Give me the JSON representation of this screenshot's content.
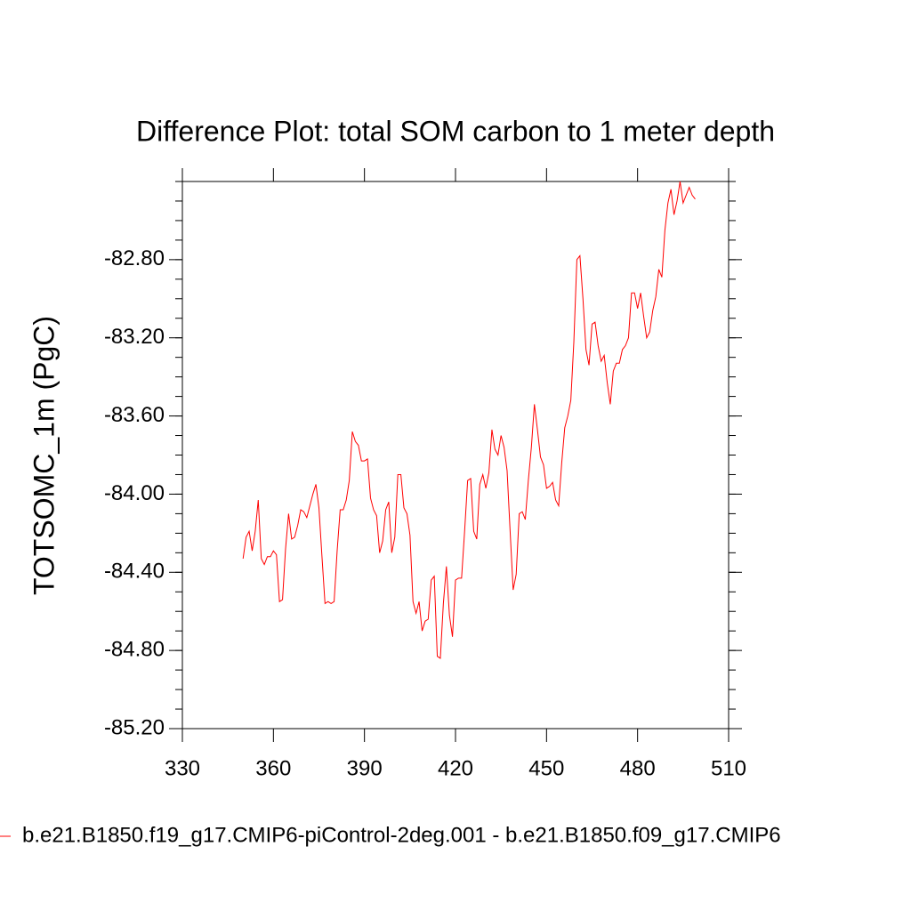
{
  "chart_data": {
    "type": "line",
    "title": "Difference Plot: total SOM carbon to 1 meter depth",
    "y_label": "TOTSOMC_1m  (PgC)",
    "x": [
      350,
      351,
      352,
      353,
      354,
      355,
      356,
      357,
      358,
      359,
      360,
      361,
      362,
      363,
      364,
      365,
      366,
      367,
      368,
      369,
      370,
      371,
      372,
      373,
      374,
      375,
      376,
      377,
      378,
      379,
      380,
      381,
      382,
      383,
      384,
      385,
      386,
      387,
      388,
      389,
      390,
      391,
      392,
      393,
      394,
      395,
      396,
      397,
      398,
      399,
      400,
      401,
      402,
      403,
      404,
      405,
      406,
      407,
      408,
      409,
      410,
      411,
      412,
      413,
      414,
      415,
      416,
      417,
      418,
      419,
      420,
      421,
      422,
      423,
      424,
      425,
      426,
      427,
      428,
      429,
      430,
      431,
      432,
      433,
      434,
      435,
      436,
      437,
      438,
      439,
      440,
      441,
      442,
      443,
      444,
      445,
      446,
      447,
      448,
      449,
      450,
      451,
      452,
      453,
      454,
      455,
      456,
      457,
      458,
      459,
      460,
      461,
      462,
      463,
      464,
      465,
      466,
      467,
      468,
      469,
      470,
      471,
      472,
      473,
      474,
      475,
      476,
      477,
      478,
      479,
      480,
      481,
      482,
      483,
      484,
      485,
      486,
      487,
      488,
      489,
      490,
      491,
      492,
      493,
      494,
      495,
      496,
      497,
      498,
      499
    ],
    "series": [
      {
        "name": "b.e21.B1850.f19_g17.CMIP6-piControl-2deg.001 - b.e21.B1850.f09_g17.CMIP6",
        "color": "#ff0000",
        "values": [
          -84.33,
          -84.22,
          -84.19,
          -84.29,
          -84.19,
          -84.03,
          -84.33,
          -84.36,
          -84.32,
          -84.32,
          -84.29,
          -84.31,
          -84.55,
          -84.54,
          -84.28,
          -84.1,
          -84.23,
          -84.22,
          -84.16,
          -84.08,
          -84.09,
          -84.12,
          -84.06,
          -84.0,
          -83.95,
          -84.07,
          -84.32,
          -84.56,
          -84.55,
          -84.56,
          -84.55,
          -84.29,
          -84.08,
          -84.08,
          -84.03,
          -83.93,
          -83.68,
          -83.73,
          -83.75,
          -83.83,
          -83.83,
          -83.82,
          -84.02,
          -84.08,
          -84.11,
          -84.3,
          -84.24,
          -84.08,
          -84.04,
          -84.3,
          -84.22,
          -83.9,
          -83.9,
          -84.07,
          -84.1,
          -84.21,
          -84.55,
          -84.61,
          -84.55,
          -84.7,
          -84.65,
          -84.64,
          -84.44,
          -84.42,
          -84.83,
          -84.84,
          -84.56,
          -84.37,
          -84.62,
          -84.73,
          -84.44,
          -84.43,
          -84.43,
          -84.19,
          -83.93,
          -83.92,
          -84.19,
          -84.23,
          -83.95,
          -83.9,
          -83.97,
          -83.89,
          -83.67,
          -83.77,
          -83.8,
          -83.7,
          -83.76,
          -83.88,
          -84.19,
          -84.49,
          -84.41,
          -84.1,
          -84.09,
          -84.13,
          -83.93,
          -83.76,
          -83.54,
          -83.67,
          -83.81,
          -83.85,
          -83.97,
          -83.96,
          -83.94,
          -84.03,
          -84.06,
          -83.84,
          -83.66,
          -83.6,
          -83.52,
          -83.22,
          -82.8,
          -82.78,
          -83.0,
          -83.26,
          -83.34,
          -83.13,
          -83.12,
          -83.24,
          -83.32,
          -83.29,
          -83.43,
          -83.54,
          -83.37,
          -83.33,
          -83.33,
          -83.26,
          -83.24,
          -83.2,
          -82.97,
          -82.97,
          -83.05,
          -82.97,
          -83.09,
          -83.2,
          -83.17,
          -83.06,
          -82.99,
          -82.85,
          -82.89,
          -82.65,
          -82.51,
          -82.44,
          -82.57,
          -82.5,
          -82.4,
          -82.51,
          -82.47,
          -82.43,
          -82.47,
          -82.49
        ]
      }
    ],
    "xlim": [
      330,
      510
    ],
    "xticks": [
      330,
      360,
      390,
      420,
      450,
      480,
      510
    ],
    "ylim": [
      -85.2,
      -82.4
    ],
    "yticks": [
      {
        "value": -85.2,
        "label": "-85.20"
      },
      {
        "value": -84.8,
        "label": "-84.80"
      },
      {
        "value": -84.4,
        "label": "-84.40"
      },
      {
        "value": -84.0,
        "label": "-84.00"
      },
      {
        "value": -83.6,
        "label": "-83.60"
      },
      {
        "value": -83.2,
        "label": "-83.20"
      },
      {
        "value": -82.8,
        "label": "-82.80"
      }
    ]
  }
}
